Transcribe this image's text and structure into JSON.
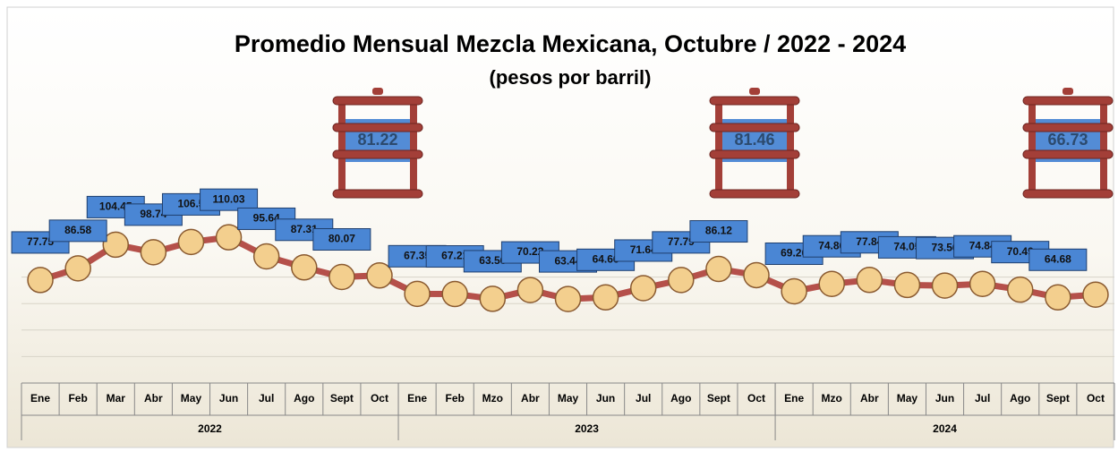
{
  "chart_data": {
    "type": "line",
    "title": "Promedio Mensual Mezcla Mexicana, Octubre / 2022 - 2024",
    "subtitle": "(pesos por barril)",
    "years": [
      {
        "label": "2022",
        "months": [
          "Ene",
          "Feb",
          "Mar",
          "Abr",
          "May",
          "Jun",
          "Jul",
          "Ago",
          "Sept",
          "Oct"
        ],
        "values": [
          77.75,
          86.58,
          104.45,
          98.74,
          106.5,
          110.03,
          95.64,
          87.31,
          80.07,
          81.22
        ]
      },
      {
        "label": "2023",
        "months": [
          "Ene",
          "Feb",
          "Mzo",
          "Abr",
          "May",
          "Jun",
          "Jul",
          "Ago",
          "Sept",
          "Oct"
        ],
        "values": [
          67.35,
          67.21,
          63.56,
          70.22,
          63.44,
          64.66,
          71.64,
          77.79,
          86.12,
          81.46
        ]
      },
      {
        "label": "2024",
        "months": [
          "Ene",
          "Mzo",
          "Abr",
          "May",
          "Jun",
          "Jul",
          "Ago",
          "Sept",
          "Oct"
        ],
        "values": [
          69.26,
          74.86,
          77.84,
          74.05,
          73.56,
          74.84,
          70.49,
          64.68,
          66.73
        ]
      }
    ],
    "line_color": "#b5504a",
    "marker_color": "#f3cf8e",
    "label_color": "#4a86d4",
    "ylim": [
      0,
      200
    ],
    "yticks": [
      0,
      20,
      40,
      60,
      80
    ],
    "grid": true
  }
}
